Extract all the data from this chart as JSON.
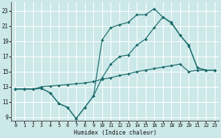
{
  "xlabel": "Humidex (Indice chaleur)",
  "ylabel": "",
  "xlim": [
    -0.5,
    23.5
  ],
  "ylim": [
    8.5,
    24.2
  ],
  "xticks": [
    0,
    1,
    2,
    3,
    4,
    5,
    6,
    7,
    8,
    9,
    10,
    11,
    12,
    13,
    14,
    15,
    16,
    17,
    18,
    19,
    20,
    21,
    22,
    23
  ],
  "yticks": [
    9,
    11,
    13,
    15,
    17,
    19,
    21,
    23
  ],
  "bg_color": "#cce8e8",
  "line_color": "#1a6b6b",
  "grid_color": "#ffffff",
  "line1_x": [
    0,
    1,
    2,
    3,
    4,
    5,
    6,
    7,
    8,
    9,
    10,
    11,
    12,
    13,
    14,
    15,
    16,
    17,
    18,
    19,
    20,
    21,
    22,
    23
  ],
  "line1_y": [
    12.7,
    12.7,
    12.7,
    12.8,
    12.2,
    10.8,
    10.3,
    8.8,
    10.3,
    11.8,
    14.2,
    16.0,
    17.0,
    17.2,
    18.5,
    19.3,
    20.8,
    22.2,
    21.4,
    19.8,
    18.4,
    15.5,
    15.2,
    15.2
  ],
  "line2_x": [
    0,
    1,
    2,
    3,
    4,
    5,
    6,
    7,
    8,
    9,
    10,
    11,
    12,
    13,
    14,
    15,
    16,
    17,
    18,
    19,
    20,
    21,
    22,
    23
  ],
  "line2_y": [
    12.7,
    12.7,
    12.7,
    12.8,
    12.2,
    10.8,
    10.3,
    8.8,
    10.3,
    11.8,
    19.2,
    20.8,
    21.2,
    21.5,
    22.5,
    22.5,
    23.3,
    22.2,
    21.5,
    19.8,
    18.5,
    15.5,
    15.2,
    15.2
  ],
  "line3_x": [
    0,
    1,
    2,
    3,
    4,
    5,
    6,
    7,
    8,
    9,
    10,
    11,
    12,
    13,
    14,
    15,
    16,
    17,
    18,
    19,
    20,
    21,
    22,
    23
  ],
  "line3_y": [
    12.7,
    12.7,
    12.7,
    13.0,
    13.1,
    13.2,
    13.3,
    13.4,
    13.5,
    13.7,
    14.0,
    14.2,
    14.5,
    14.7,
    15.0,
    15.2,
    15.4,
    15.6,
    15.8,
    16.0,
    15.0,
    15.2,
    15.2,
    15.2
  ]
}
